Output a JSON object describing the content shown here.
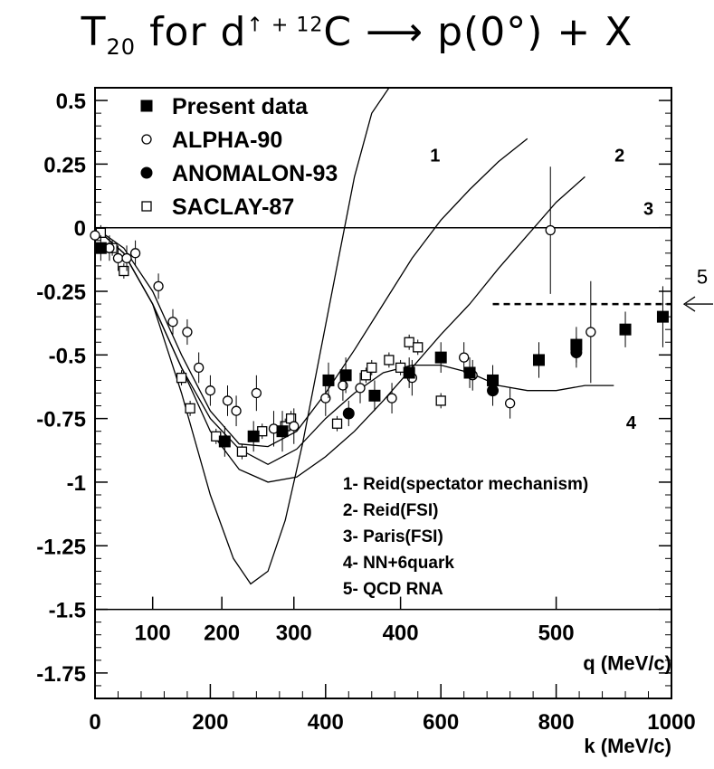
{
  "chart_data": {
    "type": "scatter",
    "title_parts": {
      "t": "T",
      "t_sub": "20",
      "pre": " for  d",
      "arrow_up": "↑",
      "sup12": " + 12",
      "post": "C ⟶  p(0°) + X"
    },
    "xlabel": "k (MeV/c)",
    "x2label": "q (MeV/c)",
    "ylabel": "",
    "xlim": [
      0,
      1000
    ],
    "ylim": [
      -1.85,
      0.55
    ],
    "xticks": [
      "0",
      "200",
      "400",
      "600",
      "800",
      "1000"
    ],
    "x2ticks": [
      "100",
      "200",
      "300",
      "400",
      "500"
    ],
    "x2tick_positions_k": [
      100,
      220,
      345,
      530,
      800
    ],
    "yticks": [
      "0.5",
      "0.25",
      "0",
      "-0.25",
      "-0.5",
      "-0.75",
      "-1",
      "-1.25",
      "-1.5",
      "-1.75"
    ],
    "ytick_values": [
      0.5,
      0.25,
      0,
      -0.25,
      -0.5,
      -0.75,
      -1,
      -1.25,
      -1.5,
      -1.75
    ],
    "hlines": [
      0,
      -1.5
    ],
    "legend": [
      {
        "label": "Present data",
        "marker": "filled-square"
      },
      {
        "label": "ALPHA-90",
        "marker": "open-circle"
      },
      {
        "label": "ANOMALON-93",
        "marker": "filled-circle"
      },
      {
        "label": "SACLAY-87",
        "marker": "open-square"
      }
    ],
    "curve_notes": [
      "1- Reid(spectator mechanism)",
      "2- Reid(FSI)",
      "3- Paris(FSI)",
      "4- NN+6quark",
      "5- QCD RNA"
    ],
    "curve_labels": [
      "1",
      "2",
      "3",
      "4",
      "5"
    ],
    "series": [
      {
        "name": "Present data",
        "marker": "filled-square",
        "points": [
          [
            10,
            -0.08,
            0.05
          ],
          [
            225,
            -0.84,
            0.06
          ],
          [
            275,
            -0.82,
            0.06
          ],
          [
            325,
            -0.8,
            0.08
          ],
          [
            405,
            -0.6,
            0.07
          ],
          [
            435,
            -0.58,
            0.07
          ],
          [
            485,
            -0.66,
            0.06
          ],
          [
            545,
            -0.57,
            0.06
          ],
          [
            600,
            -0.51,
            0.06
          ],
          [
            650,
            -0.57,
            0.06
          ],
          [
            690,
            -0.6,
            0.06
          ],
          [
            770,
            -0.52,
            0.07
          ],
          [
            835,
            -0.46,
            0.07
          ],
          [
            920,
            -0.4,
            0.07
          ],
          [
            985,
            -0.35,
            0.12
          ]
        ]
      },
      {
        "name": "ALPHA-90",
        "marker": "open-circle",
        "points": [
          [
            0,
            -0.03,
            0.04
          ],
          [
            25,
            -0.08,
            0.05
          ],
          [
            40,
            -0.12,
            0.05
          ],
          [
            55,
            -0.12,
            0.05
          ],
          [
            70,
            -0.1,
            0.05
          ],
          [
            110,
            -0.23,
            0.05
          ],
          [
            135,
            -0.37,
            0.05
          ],
          [
            160,
            -0.41,
            0.05
          ],
          [
            180,
            -0.55,
            0.06
          ],
          [
            200,
            -0.64,
            0.06
          ],
          [
            230,
            -0.68,
            0.06
          ],
          [
            245,
            -0.72,
            0.06
          ],
          [
            280,
            -0.65,
            0.07
          ],
          [
            310,
            -0.79,
            0.07
          ],
          [
            345,
            -0.78,
            0.07
          ],
          [
            400,
            -0.67,
            0.07
          ],
          [
            430,
            -0.62,
            0.06
          ],
          [
            460,
            -0.63,
            0.06
          ],
          [
            515,
            -0.67,
            0.06
          ],
          [
            550,
            -0.59,
            0.07
          ],
          [
            640,
            -0.51,
            0.06
          ],
          [
            655,
            -0.58,
            0.06
          ],
          [
            720,
            -0.69,
            0.06
          ],
          [
            790,
            -0.01,
            0.25
          ],
          [
            860,
            -0.41,
            0.2
          ]
        ]
      },
      {
        "name": "ANOMALON-93",
        "marker": "filled-circle",
        "points": [
          [
            440,
            -0.73,
            0.05
          ],
          [
            690,
            -0.64,
            0.06
          ],
          [
            835,
            -0.49,
            0.06
          ]
        ]
      },
      {
        "name": "SACLAY-87",
        "marker": "open-square",
        "points": [
          [
            10,
            -0.02,
            0.03
          ],
          [
            30,
            -0.08,
            0.03
          ],
          [
            50,
            -0.17,
            0.03
          ],
          [
            150,
            -0.59,
            0.03
          ],
          [
            165,
            -0.71,
            0.03
          ],
          [
            210,
            -0.82,
            0.03
          ],
          [
            255,
            -0.88,
            0.03
          ],
          [
            290,
            -0.8,
            0.03
          ],
          [
            330,
            -0.78,
            0.03
          ],
          [
            340,
            -0.75,
            0.03
          ],
          [
            420,
            -0.77,
            0.03
          ],
          [
            470,
            -0.58,
            0.03
          ],
          [
            480,
            -0.55,
            0.03
          ],
          [
            510,
            -0.52,
            0.03
          ],
          [
            530,
            -0.55,
            0.03
          ],
          [
            545,
            -0.45,
            0.03
          ],
          [
            560,
            -0.47,
            0.03
          ],
          [
            600,
            -0.68,
            0.03
          ]
        ]
      }
    ],
    "curves": [
      {
        "id": "1",
        "points": [
          [
            0,
            0
          ],
          [
            50,
            -0.1
          ],
          [
            100,
            -0.3
          ],
          [
            150,
            -0.65
          ],
          [
            200,
            -1.05
          ],
          [
            240,
            -1.3
          ],
          [
            270,
            -1.4
          ],
          [
            300,
            -1.35
          ],
          [
            330,
            -1.15
          ],
          [
            360,
            -0.85
          ],
          [
            390,
            -0.5
          ],
          [
            420,
            -0.15
          ],
          [
            450,
            0.2
          ],
          [
            480,
            0.45
          ],
          [
            510,
            0.55
          ]
        ]
      },
      {
        "id": "2",
        "points": [
          [
            0,
            0
          ],
          [
            50,
            -0.08
          ],
          [
            100,
            -0.25
          ],
          [
            150,
            -0.5
          ],
          [
            200,
            -0.72
          ],
          [
            250,
            -0.85
          ],
          [
            300,
            -0.86
          ],
          [
            350,
            -0.8
          ],
          [
            400,
            -0.65
          ],
          [
            450,
            -0.48
          ],
          [
            500,
            -0.3
          ],
          [
            550,
            -0.12
          ],
          [
            600,
            0.03
          ],
          [
            650,
            0.15
          ],
          [
            700,
            0.26
          ],
          [
            750,
            0.35
          ]
        ]
      },
      {
        "id": "3",
        "points": [
          [
            0,
            0
          ],
          [
            50,
            -0.1
          ],
          [
            100,
            -0.3
          ],
          [
            150,
            -0.55
          ],
          [
            200,
            -0.8
          ],
          [
            250,
            -0.95
          ],
          [
            300,
            -1.0
          ],
          [
            350,
            -0.98
          ],
          [
            400,
            -0.9
          ],
          [
            450,
            -0.8
          ],
          [
            500,
            -0.68
          ],
          [
            550,
            -0.55
          ],
          [
            600,
            -0.42
          ],
          [
            650,
            -0.3
          ],
          [
            700,
            -0.16
          ],
          [
            750,
            -0.03
          ],
          [
            800,
            0.1
          ],
          [
            850,
            0.2
          ]
        ]
      },
      {
        "id": "4",
        "points": [
          [
            0,
            0
          ],
          [
            50,
            -0.1
          ],
          [
            100,
            -0.3
          ],
          [
            150,
            -0.55
          ],
          [
            200,
            -0.75
          ],
          [
            250,
            -0.87
          ],
          [
            300,
            -0.93
          ],
          [
            350,
            -0.87
          ],
          [
            400,
            -0.75
          ],
          [
            450,
            -0.65
          ],
          [
            500,
            -0.57
          ],
          [
            550,
            -0.54
          ],
          [
            600,
            -0.54
          ],
          [
            650,
            -0.57
          ],
          [
            700,
            -0.62
          ],
          [
            750,
            -0.64
          ],
          [
            800,
            -0.64
          ],
          [
            850,
            -0.62
          ],
          [
            900,
            -0.62
          ]
        ]
      }
    ],
    "dashed_level": {
      "id": "5",
      "y": -0.3,
      "x_from": 690,
      "x_to": 1000
    },
    "grid": false,
    "legend_placement": "top-left"
  }
}
